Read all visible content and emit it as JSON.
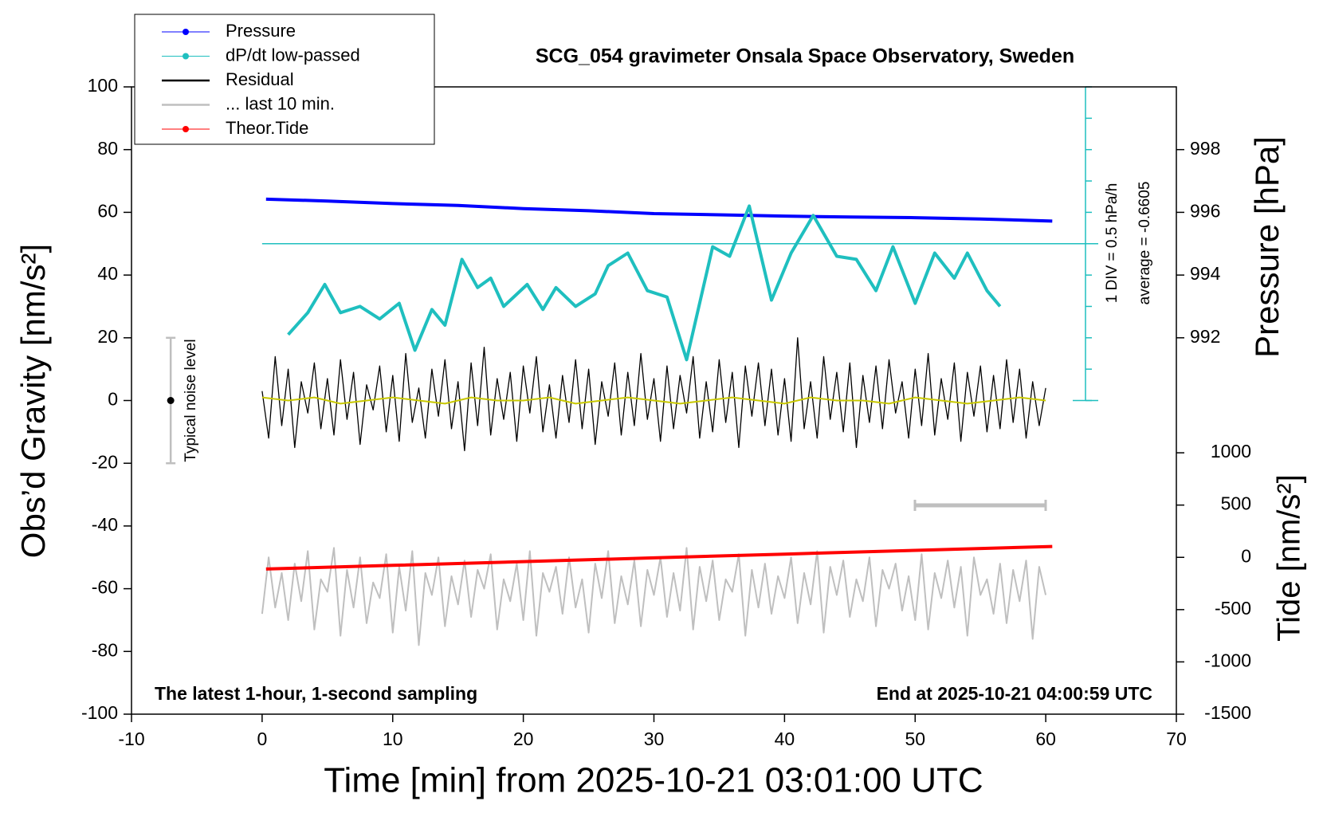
{
  "chart_data": {
    "type": "line",
    "title": "SCG_054 gravimeter Onsala Space Observatory, Sweden",
    "xlabel": "Time [min] from 2025-10-21 03:01:00 UTC",
    "ylabel": "Obs’d Gravity [nm/s²]",
    "y2label": "Pressure [hPa]",
    "y3label": "Tide [nm/s²]",
    "annotations": [
      "The latest 1-hour, 1-second sampling",
      "End at 2025-10-21 04:00:59 UTC",
      "1 DIV = 0.5 hPa/h",
      "average = -0.6605"
    ],
    "xlim": [
      -10,
      70
    ],
    "xticks": [
      -10,
      0,
      10,
      20,
      30,
      40,
      50,
      60,
      70
    ],
    "ylim": [
      -100,
      100
    ],
    "yticks": [
      -100,
      -80,
      -60,
      -40,
      -20,
      0,
      20,
      40,
      60,
      80,
      100
    ],
    "y2lim": [
      980,
      1000
    ],
    "y2ticks": [
      992,
      994,
      996,
      998
    ],
    "y3lim": [
      -1500,
      4500
    ],
    "y3ticks": [
      -1500,
      -1000,
      -500,
      0,
      500,
      1000
    ],
    "y4lim": [
      -3.1605,
      1.8395
    ],
    "noise_bar": {
      "label": "Typical noise level",
      "x": -7,
      "value": 0,
      "error": 20
    },
    "x": [
      0,
      0.5,
      1,
      1.5,
      2,
      2.5,
      3,
      3.5,
      4,
      4.5,
      5,
      5.5,
      6,
      6.5,
      7,
      7.5,
      8,
      8.5,
      9,
      9.5,
      10,
      10.5,
      11,
      11.5,
      12,
      12.5,
      13,
      13.5,
      14,
      14.5,
      15,
      15.5,
      16,
      16.5,
      17,
      17.5,
      18,
      18.5,
      19,
      19.5,
      20,
      20.5,
      21,
      21.5,
      22,
      22.5,
      23,
      23.5,
      24,
      24.5,
      25,
      25.5,
      26,
      26.5,
      27,
      27.5,
      28,
      28.5,
      29,
      29.5,
      30,
      30.5,
      31,
      31.5,
      32,
      32.5,
      33,
      33.5,
      34,
      34.5,
      35,
      35.5,
      36,
      36.5,
      37,
      37.5,
      38,
      38.5,
      39,
      39.5,
      40,
      40.5,
      41,
      41.5,
      42,
      42.5,
      43,
      43.5,
      44,
      44.5,
      45,
      45.5,
      46,
      46.5,
      47,
      47.5,
      48,
      48.5,
      49,
      49.5,
      50,
      50.5,
      51,
      51.5,
      52,
      52.5,
      53,
      53.5,
      54,
      54.5,
      55,
      55.5,
      56,
      56.5,
      57,
      57.5,
      58,
      58.5,
      59,
      59.5,
      60
    ],
    "series": [
      {
        "name": "Pressure",
        "color": "#0000ff",
        "axis": "y2",
        "marker": true,
        "x": [
          0.3,
          5,
          10,
          15,
          20,
          25,
          30,
          35,
          40,
          45,
          50,
          55,
          60.5
        ],
        "values": [
          996.42,
          996.36,
          996.28,
          996.22,
          996.12,
          996.05,
          995.96,
          995.92,
          995.88,
          995.85,
          995.83,
          995.79,
          995.72
        ]
      },
      {
        "name": "dP/dt low-passed",
        "color": "#1fbfbf",
        "axis": "y4",
        "marker": true,
        "x": [
          2,
          3.5,
          4.8,
          6,
          7.5,
          9,
          10.5,
          11.7,
          13,
          14,
          15.3,
          16.5,
          17.5,
          18.5,
          20.3,
          21.5,
          22.5,
          24,
          25.5,
          26.5,
          28,
          29.5,
          31,
          32.5,
          34.5,
          35.8,
          37.3,
          39,
          40.5,
          42.2,
          44,
          45.5,
          47,
          48.3,
          50,
          51.5,
          53,
          54,
          55.5,
          56.5
        ],
        "values": [
          -2.11,
          -1.76,
          -1.31,
          -1.76,
          -1.66,
          -1.86,
          -1.61,
          -2.36,
          -1.71,
          -1.96,
          -0.91,
          -1.36,
          -1.21,
          -1.66,
          -1.31,
          -1.71,
          -1.36,
          -1.66,
          -1.46,
          -1.01,
          -0.81,
          -1.41,
          -1.51,
          -2.51,
          -0.71,
          -0.86,
          -0.06,
          -1.56,
          -0.81,
          -0.21,
          -0.86,
          -0.91,
          -1.41,
          -0.71,
          -1.61,
          -0.81,
          -1.21,
          -0.81,
          -1.41,
          -1.66
        ]
      },
      {
        "name": "Residual",
        "color": "#000000",
        "values": [
          3,
          -12,
          14,
          -8,
          10,
          -15,
          6,
          -4,
          12,
          -9,
          7,
          -11,
          13,
          -6,
          9,
          -14,
          5,
          -3,
          11,
          -10,
          8,
          -13,
          15,
          -7,
          4,
          -12,
          10,
          -5,
          13,
          -9,
          6,
          -16,
          12,
          -8,
          17,
          -11,
          7,
          -6,
          9,
          -13,
          11,
          -4,
          14,
          -10,
          5,
          -12,
          8,
          -7,
          13,
          -9,
          10,
          -14,
          6,
          -5,
          12,
          -11,
          9,
          -8,
          15,
          -6,
          7,
          -13,
          11,
          -9,
          8,
          -4,
          14,
          -12,
          6,
          -10,
          13,
          -7,
          9,
          -15,
          11,
          -5,
          12,
          -8,
          10,
          -11,
          7,
          -13,
          20,
          -9,
          6,
          -12,
          14,
          -6,
          9,
          -10,
          12,
          -15,
          8,
          -7,
          11,
          -9,
          13,
          -4,
          6,
          -12,
          10,
          -8,
          15,
          -11,
          7,
          -6,
          12,
          -13,
          9,
          -5,
          11,
          -10,
          8,
          -9,
          13,
          -7,
          10,
          -12,
          6,
          -8,
          4
        ]
      },
      {
        "name": "... last 10 min.",
        "color": "#bfbfbf",
        "values": [
          -68,
          -50,
          -66,
          -55,
          -70,
          -52,
          -64,
          -48,
          -73,
          -57,
          -61,
          -47,
          -75,
          -54,
          -66,
          -50,
          -71,
          -58,
          -63,
          -49,
          -74,
          -53,
          -67,
          -48,
          -78,
          -55,
          -62,
          -50,
          -72,
          -56,
          -65,
          -51,
          -69,
          -54,
          -60,
          -49,
          -73,
          -57,
          -64,
          -52,
          -70,
          -48,
          -75,
          -55,
          -61,
          -53,
          -68,
          -50,
          -66,
          -57,
          -74,
          -52,
          -63,
          -48,
          -71,
          -56,
          -65,
          -51,
          -72,
          -54,
          -62,
          -50,
          -69,
          -55,
          -67,
          -47,
          -73,
          -53,
          -64,
          -51,
          -70,
          -57,
          -61,
          -49,
          -75,
          -54,
          -66,
          -52,
          -68,
          -56,
          -63,
          -50,
          -71,
          -55,
          -65,
          -48,
          -74,
          -53,
          -62,
          -51,
          -69,
          -57,
          -64,
          -50,
          -72,
          -54,
          -60,
          -52,
          -67,
          -56,
          -70,
          -49,
          -73,
          -55,
          -63,
          -51,
          -66,
          -53,
          -75,
          -50,
          -62,
          -57,
          -68,
          -52,
          -71,
          -54,
          -64,
          -51,
          -76,
          -53,
          -62
        ]
      },
      {
        "name": "Theor.Tide",
        "color": "#ff0000",
        "axis": "y3",
        "marker": true,
        "x": [
          0.3,
          10,
          20,
          30,
          40,
          50,
          60.5
        ],
        "values": [
          -112,
          -77,
          -41,
          -5,
          31,
          67,
          104
        ]
      },
      {
        "color": "#c8c800",
        "x": [
          0,
          2,
          4,
          6,
          8,
          10,
          12,
          14,
          16,
          18,
          20,
          22,
          24,
          26,
          28,
          30,
          32,
          34,
          36,
          38,
          40,
          42,
          44,
          46,
          48,
          50,
          52,
          54,
          56,
          58,
          60
        ],
        "values": [
          1,
          0,
          1,
          -1,
          0,
          1,
          0,
          -1,
          1,
          0,
          0,
          1,
          -1,
          0,
          1,
          0,
          -1,
          0,
          1,
          0,
          -1,
          1,
          0,
          0,
          -1,
          1,
          0,
          -1,
          0,
          1,
          0
        ]
      }
    ]
  }
}
